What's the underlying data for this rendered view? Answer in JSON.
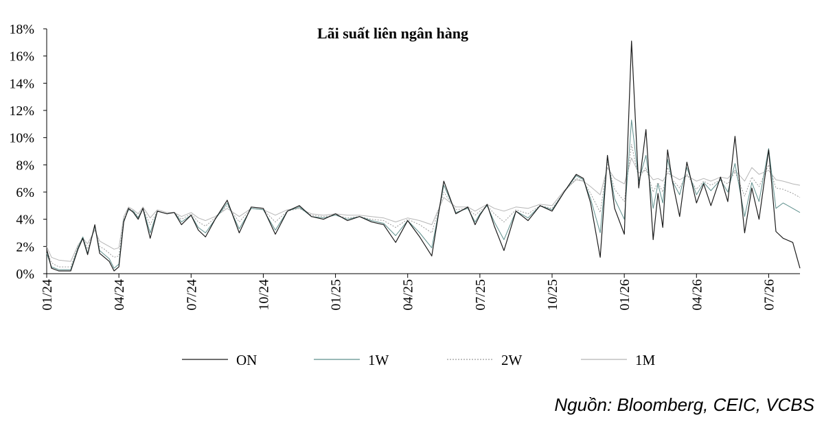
{
  "chart_data": {
    "type": "line",
    "title": "Lãi suất liên ngân hàng",
    "xlabel": "",
    "ylabel": "",
    "ylim": [
      0,
      18
    ],
    "y_ticks": [
      "0%",
      "2%",
      "4%",
      "6%",
      "8%",
      "10%",
      "12%",
      "14%",
      "16%",
      "18%"
    ],
    "x_ticks": [
      "01/24",
      "04/24",
      "07/24",
      "10/24",
      "01/25",
      "04/25",
      "07/25",
      "10/25",
      "01/26",
      "04/26",
      "07/26"
    ],
    "x_tick_month_index": [
      0,
      3,
      6,
      9,
      12,
      15,
      18,
      21,
      24,
      27,
      30
    ],
    "x_range_months": [
      0,
      31.3
    ],
    "grid": false,
    "legend_position": "bottom",
    "x": [
      0,
      0.2,
      0.5,
      1.0,
      1.3,
      1.5,
      1.7,
      2.0,
      2.2,
      2.4,
      2.6,
      2.8,
      3.0,
      3.2,
      3.4,
      3.6,
      3.8,
      4.0,
      4.3,
      4.6,
      5.0,
      5.3,
      5.6,
      6.0,
      6.3,
      6.6,
      7.0,
      7.5,
      8.0,
      8.5,
      9.0,
      9.5,
      10.0,
      10.5,
      11.0,
      11.5,
      12.0,
      12.5,
      13.0,
      13.5,
      14.0,
      14.5,
      15.0,
      15.5,
      16.0,
      16.5,
      17.0,
      17.5,
      17.8,
      18.0,
      18.3,
      18.6,
      19.0,
      19.5,
      20.0,
      20.5,
      21.0,
      21.5,
      22.0,
      22.3,
      22.6,
      23.0,
      23.3,
      23.6,
      24.0,
      24.3,
      24.6,
      24.9,
      25.2,
      25.4,
      25.6,
      25.8,
      26.0,
      26.3,
      26.6,
      27.0,
      27.3,
      27.6,
      28.0,
      28.3,
      28.6,
      29.0,
      29.3,
      29.6,
      30.0,
      30.3,
      30.6,
      31.0,
      31.3
    ],
    "series": [
      {
        "name": "ON",
        "color": "#1a1a1a",
        "values": [
          1.8,
          0.4,
          0.2,
          0.2,
          1.8,
          2.6,
          1.4,
          3.6,
          1.5,
          1.2,
          0.9,
          0.2,
          0.5,
          3.8,
          4.8,
          4.5,
          4.0,
          4.8,
          2.6,
          4.6,
          4.4,
          4.5,
          3.6,
          4.3,
          3.2,
          2.7,
          4.0,
          5.4,
          3.0,
          4.9,
          4.8,
          2.9,
          4.6,
          5.0,
          4.2,
          4.0,
          4.4,
          3.9,
          4.2,
          3.8,
          3.6,
          2.3,
          3.9,
          2.7,
          1.3,
          6.8,
          4.4,
          4.9,
          3.6,
          4.3,
          5.1,
          3.5,
          1.7,
          4.6,
          3.9,
          5.0,
          4.6,
          6.0,
          7.3,
          7.0,
          5.2,
          1.2,
          8.7,
          4.8,
          2.9,
          17.1,
          6.3,
          10.6,
          2.5,
          5.9,
          3.4,
          9.1,
          6.8,
          4.2,
          8.2,
          5.2,
          6.6,
          5.0,
          7.1,
          5.3,
          10.1,
          3.0,
          6.3,
          4.0,
          9.1,
          3.1,
          2.6,
          2.3,
          0.4
        ]
      },
      {
        "name": "1W",
        "color": "#5e8f8c",
        "values": [
          1.5,
          0.5,
          0.3,
          0.3,
          1.9,
          2.7,
          1.5,
          3.5,
          1.7,
          1.4,
          1.1,
          0.4,
          0.7,
          3.9,
          4.7,
          4.6,
          4.1,
          4.8,
          3.0,
          4.6,
          4.4,
          4.5,
          3.8,
          4.3,
          3.4,
          3.0,
          4.0,
          5.2,
          3.3,
          4.8,
          4.7,
          3.2,
          4.6,
          4.9,
          4.2,
          4.1,
          4.3,
          4.0,
          4.2,
          3.9,
          3.7,
          2.8,
          3.9,
          3.0,
          1.9,
          6.5,
          4.5,
          4.8,
          3.8,
          4.4,
          5.0,
          3.8,
          2.5,
          4.6,
          4.1,
          5.0,
          4.7,
          6.0,
          7.2,
          6.9,
          5.5,
          3.0,
          8.5,
          5.5,
          4.0,
          11.3,
          6.8,
          8.7,
          4.8,
          6.6,
          5.2,
          8.4,
          6.8,
          5.8,
          7.8,
          5.8,
          6.7,
          6.1,
          6.9,
          6.0,
          8.1,
          4.2,
          6.7,
          5.3,
          9.2,
          4.8,
          5.2,
          4.8,
          4.5
        ]
      },
      {
        "name": "2W",
        "color": "#9a9a9a",
        "values": [
          1.7,
          0.8,
          0.5,
          0.5,
          2.0,
          2.7,
          1.8,
          3.4,
          2.0,
          1.8,
          1.5,
          1.2,
          1.3,
          4.0,
          4.8,
          4.6,
          4.2,
          4.8,
          3.6,
          4.6,
          4.4,
          4.5,
          4.0,
          4.4,
          3.8,
          3.5,
          4.1,
          5.0,
          3.8,
          4.8,
          4.7,
          3.8,
          4.6,
          4.8,
          4.3,
          4.2,
          4.3,
          4.1,
          4.2,
          4.0,
          3.9,
          3.4,
          4.0,
          3.6,
          3.0,
          6.0,
          4.7,
          4.8,
          4.3,
          4.6,
          5.0,
          4.4,
          3.8,
          4.7,
          4.4,
          5.0,
          4.8,
          6.0,
          7.0,
          6.8,
          5.9,
          4.5,
          8.2,
          6.2,
          5.3,
          9.5,
          7.0,
          7.8,
          6.0,
          6.7,
          6.0,
          7.8,
          6.9,
          6.3,
          7.3,
          6.2,
          6.8,
          6.5,
          6.9,
          6.6,
          7.5,
          5.7,
          7.1,
          6.4,
          8.0,
          6.3,
          6.2,
          5.9,
          5.6
        ]
      },
      {
        "name": "1M",
        "color": "#b5b5b5",
        "values": [
          2.0,
          1.2,
          1.0,
          0.9,
          2.1,
          2.6,
          2.2,
          3.2,
          2.4,
          2.2,
          2.0,
          1.8,
          1.9,
          4.2,
          4.9,
          4.7,
          4.4,
          4.9,
          4.1,
          4.7,
          4.5,
          4.5,
          4.2,
          4.5,
          4.1,
          3.9,
          4.2,
          4.8,
          4.2,
          4.8,
          4.7,
          4.3,
          4.7,
          4.8,
          4.4,
          4.3,
          4.4,
          4.3,
          4.3,
          4.2,
          4.1,
          3.8,
          4.1,
          3.9,
          3.6,
          5.6,
          4.9,
          4.9,
          4.6,
          4.8,
          5.1,
          4.8,
          4.6,
          4.9,
          4.8,
          5.1,
          5.0,
          6.1,
          6.9,
          6.8,
          6.4,
          5.8,
          7.8,
          7.0,
          6.6,
          8.5,
          7.4,
          7.6,
          6.9,
          7.0,
          6.8,
          7.4,
          7.2,
          6.9,
          7.2,
          6.8,
          7.0,
          6.8,
          7.1,
          7.0,
          7.6,
          6.8,
          7.8,
          7.3,
          7.6,
          6.9,
          6.8,
          6.6,
          6.5
        ]
      }
    ]
  },
  "source": "Nguồn: Bloomberg, CEIC, VCBS"
}
